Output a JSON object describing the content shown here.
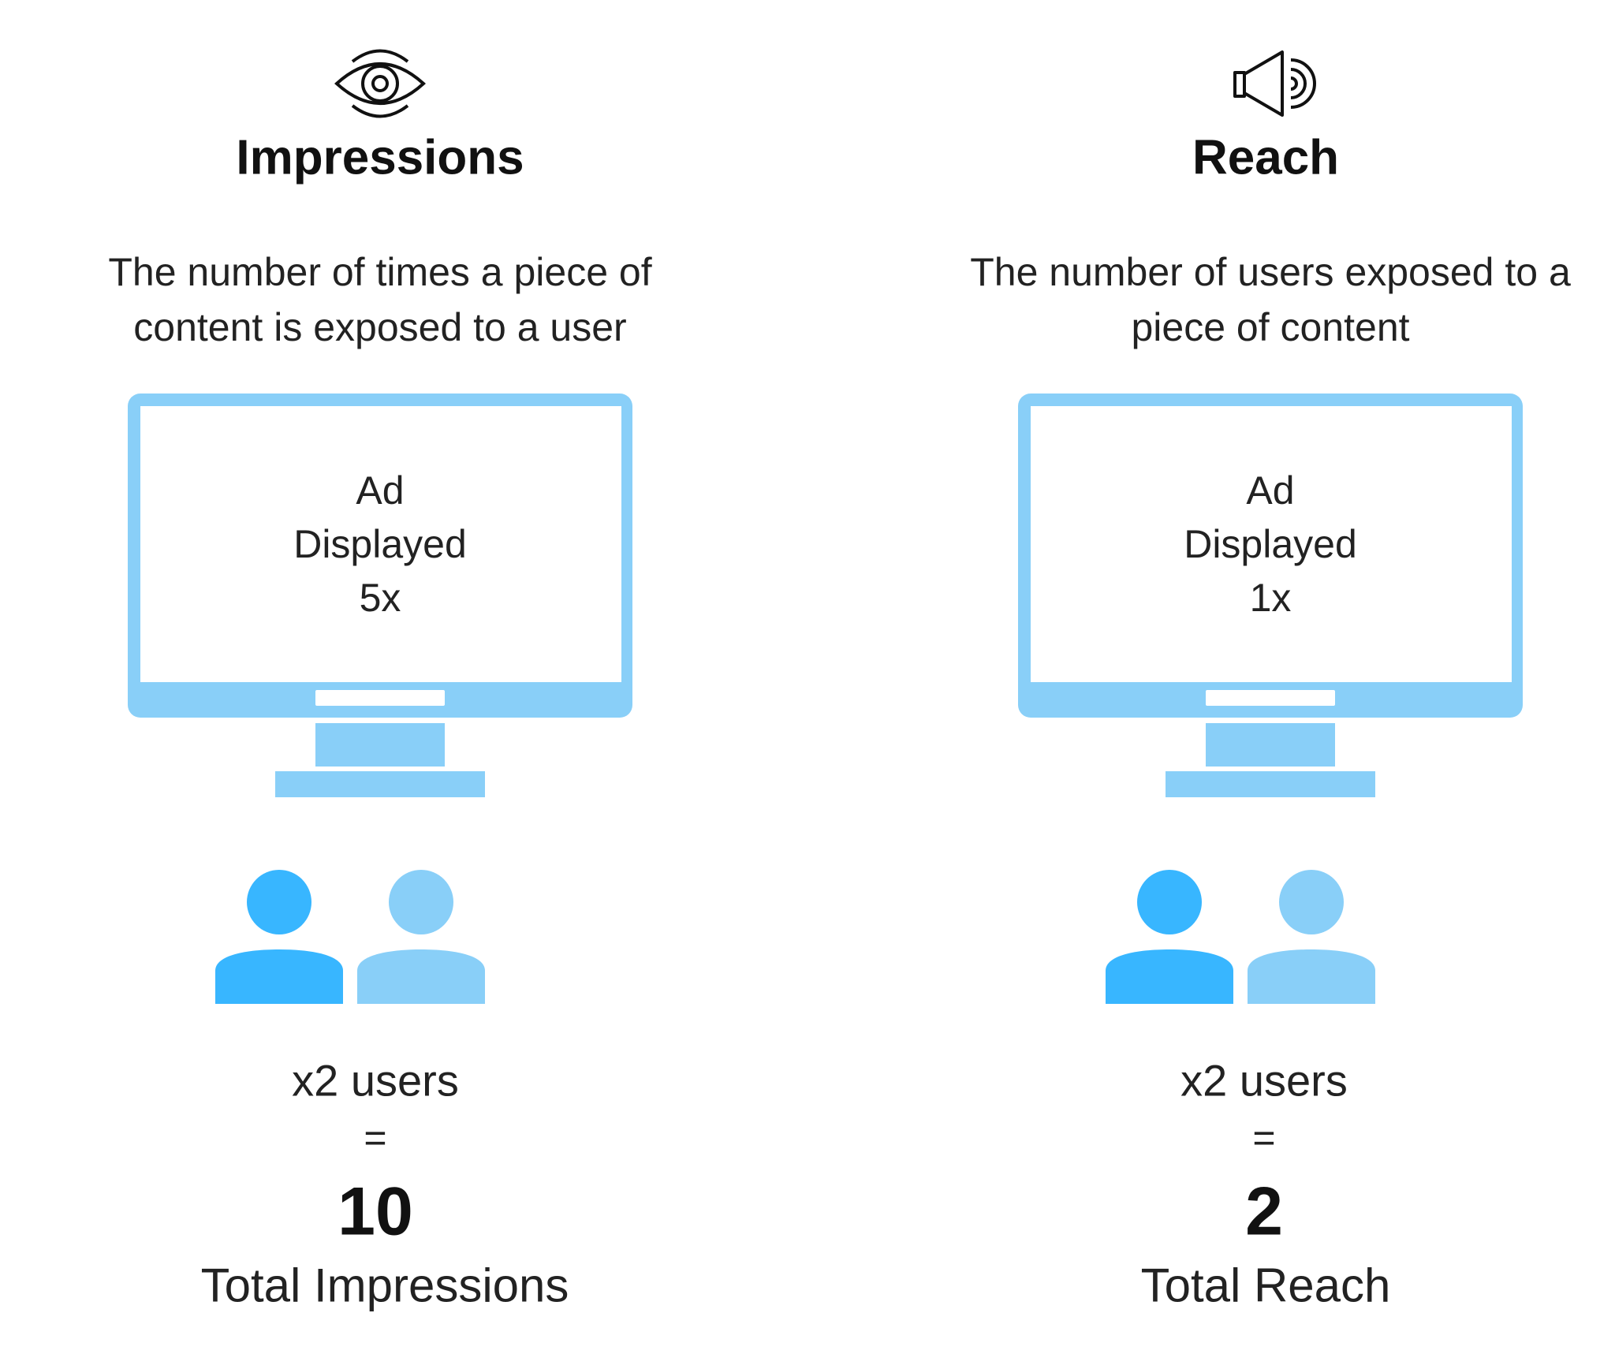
{
  "colors": {
    "monitor": "#89cff8",
    "user_primary": "#38b6ff",
    "user_secondary": "#89cff8",
    "text": "#111111"
  },
  "columns": [
    {
      "icon": "eye-icon",
      "title": "Impressions",
      "description": [
        "The number of times a piece of",
        "content is exposed to a user"
      ],
      "screen": [
        "Ad",
        "Displayed",
        "5x"
      ],
      "users": "x2 users",
      "equals": "=",
      "total": "10",
      "total_label": "Total Impressions"
    },
    {
      "icon": "speaker-icon",
      "title": "Reach",
      "description": [
        "The number of users exposed to a",
        "piece of content"
      ],
      "screen": [
        "Ad",
        "Displayed",
        "1x"
      ],
      "users": "x2 users",
      "equals": "=",
      "total": "2",
      "total_label": "Total Reach"
    }
  ]
}
